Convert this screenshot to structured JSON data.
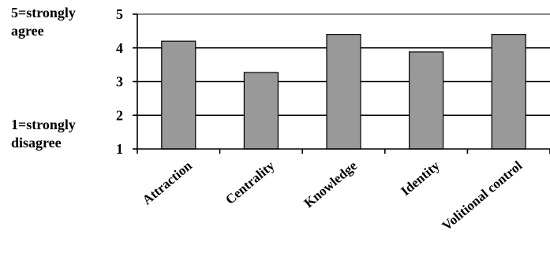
{
  "scale_labels": {
    "top": [
      "5=strongly",
      "agree"
    ],
    "bottom": [
      "1=strongly",
      "disagree"
    ]
  },
  "colors": {
    "bar_fill": "#999999",
    "bar_stroke": "#000000",
    "gridline": "#000000",
    "plot_top_border": "#888888"
  },
  "chart_data": {
    "type": "bar",
    "categories": [
      "Attraction",
      "Centrality",
      "Knowledge",
      "Identity",
      "Volitional control"
    ],
    "values": [
      4.2,
      3.27,
      4.4,
      3.88,
      4.4
    ],
    "ylim": [
      1,
      5
    ],
    "yticks": [
      1,
      2,
      3,
      4,
      5
    ],
    "grid": true,
    "legend": "none",
    "title": "",
    "xlabel": "",
    "ylabel": ""
  }
}
